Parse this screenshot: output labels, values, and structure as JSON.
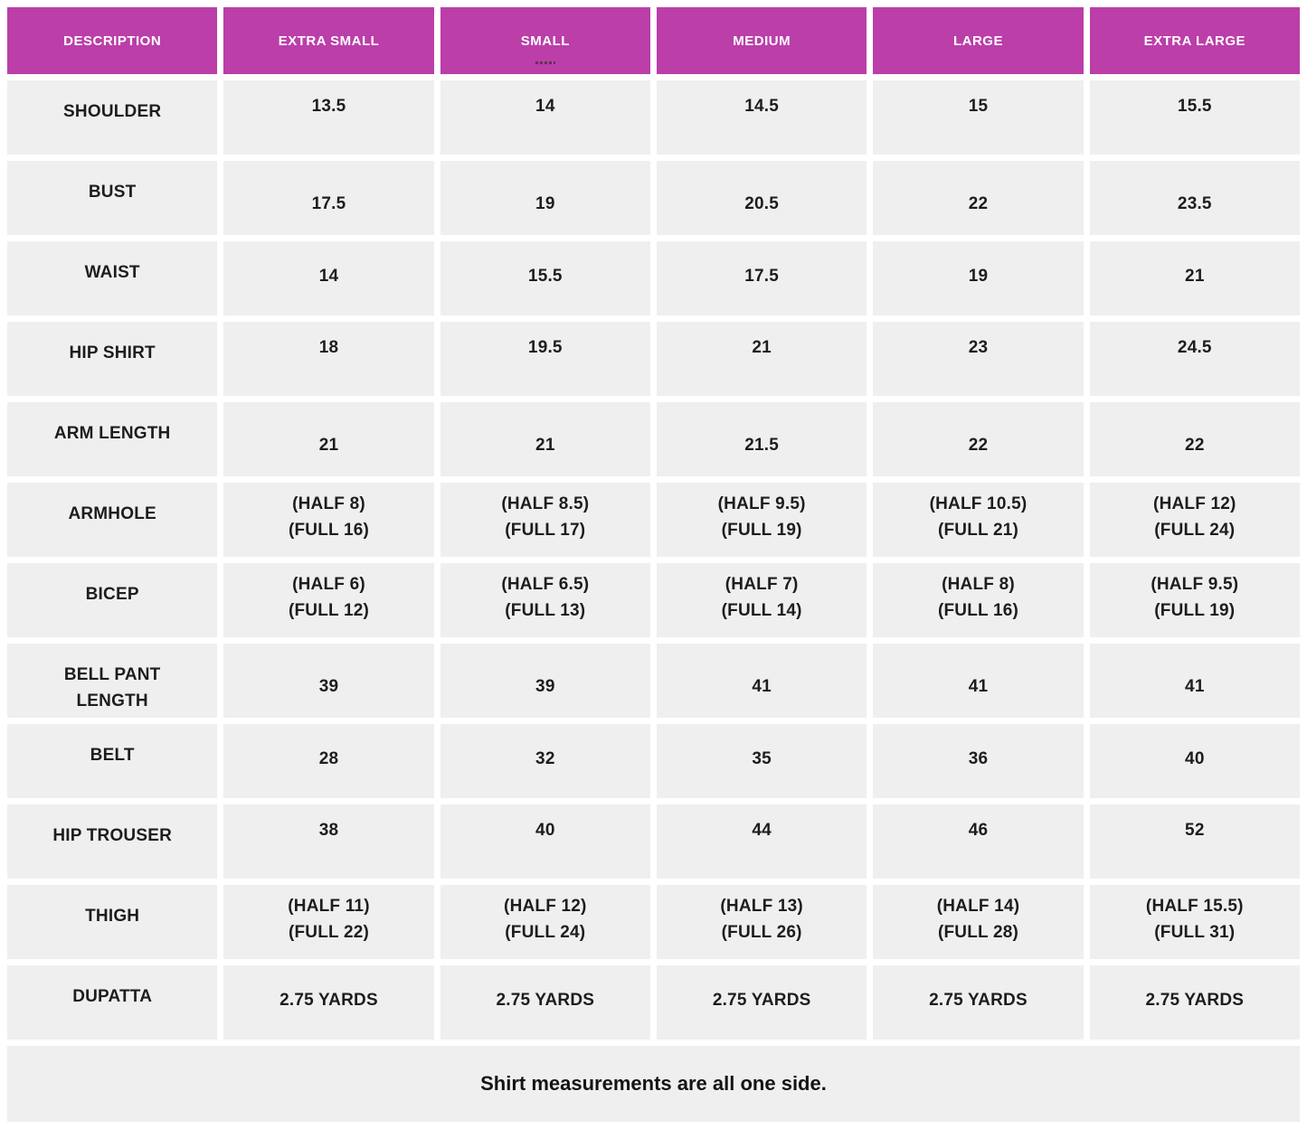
{
  "chart_data": {
    "type": "table",
    "columns": [
      "DESCRIPTION",
      "EXTRA SMALL",
      "SMALL",
      "MEDIUM",
      "LARGE",
      "EXTRA LARGE"
    ],
    "rows": [
      {
        "label": "SHOULDER",
        "values": [
          "13.5",
          "14",
          "14.5",
          "15",
          "15.5"
        ]
      },
      {
        "label": "BUST",
        "values": [
          "17.5",
          "19",
          "20.5",
          "22",
          "23.5"
        ]
      },
      {
        "label": "WAIST",
        "values": [
          "14",
          "15.5",
          "17.5",
          "19",
          "21"
        ]
      },
      {
        "label": "HIP SHIRT",
        "values": [
          "18",
          "19.5",
          "21",
          "23",
          "24.5"
        ]
      },
      {
        "label": "ARM LENGTH",
        "values": [
          "21",
          "21",
          "21.5",
          "22",
          "22"
        ]
      },
      {
        "label": "ARMHOLE",
        "values": [
          "(HALF 8)\n(FULL 16)",
          "(HALF 8.5)\n(FULL 17)",
          "(HALF 9.5)\n(FULL 19)",
          "(HALF 10.5)\n(FULL 21)",
          "(HALF 12)\n(FULL 24)"
        ]
      },
      {
        "label": "BICEP",
        "values": [
          "(HALF 6)\n(FULL 12)",
          "(HALF 6.5)\n(FULL 13)",
          "(HALF 7)\n(FULL 14)",
          "(HALF 8)\n(FULL 16)",
          "(HALF 9.5)\n(FULL 19)"
        ]
      },
      {
        "label": "BELL PANT LENGTH",
        "values": [
          "39",
          "39",
          "41",
          "41",
          "41"
        ]
      },
      {
        "label": "BELT",
        "values": [
          "28",
          "32",
          "35",
          "36",
          "40"
        ]
      },
      {
        "label": "HIP TROUSER",
        "values": [
          "38",
          "40",
          "44",
          "46",
          "52"
        ]
      },
      {
        "label": "THIGH",
        "values": [
          "(HALF 11)\n(FULL 22)",
          "(HALF 12)\n(FULL 24)",
          "(HALF 13)\n(FULL 26)",
          "(HALF 14)\n(FULL 28)",
          "(HALF 15.5)\n(FULL 31)"
        ]
      },
      {
        "label": "DUPATTA",
        "values": [
          "2.75 YARDS",
          "2.75 YARDS",
          "2.75 YARDS",
          "2.75 YARDS",
          "2.75 YARDS"
        ]
      }
    ],
    "footnote": "Shirt measurements are all one side.",
    "legend_position": "none",
    "grid": false
  },
  "colors": {
    "header_bg": "#bb3ea9",
    "header_text": "#ffffff",
    "cell_bg": "#efefef",
    "text": "#1d1d1d",
    "page_bg": "#ffffff"
  }
}
